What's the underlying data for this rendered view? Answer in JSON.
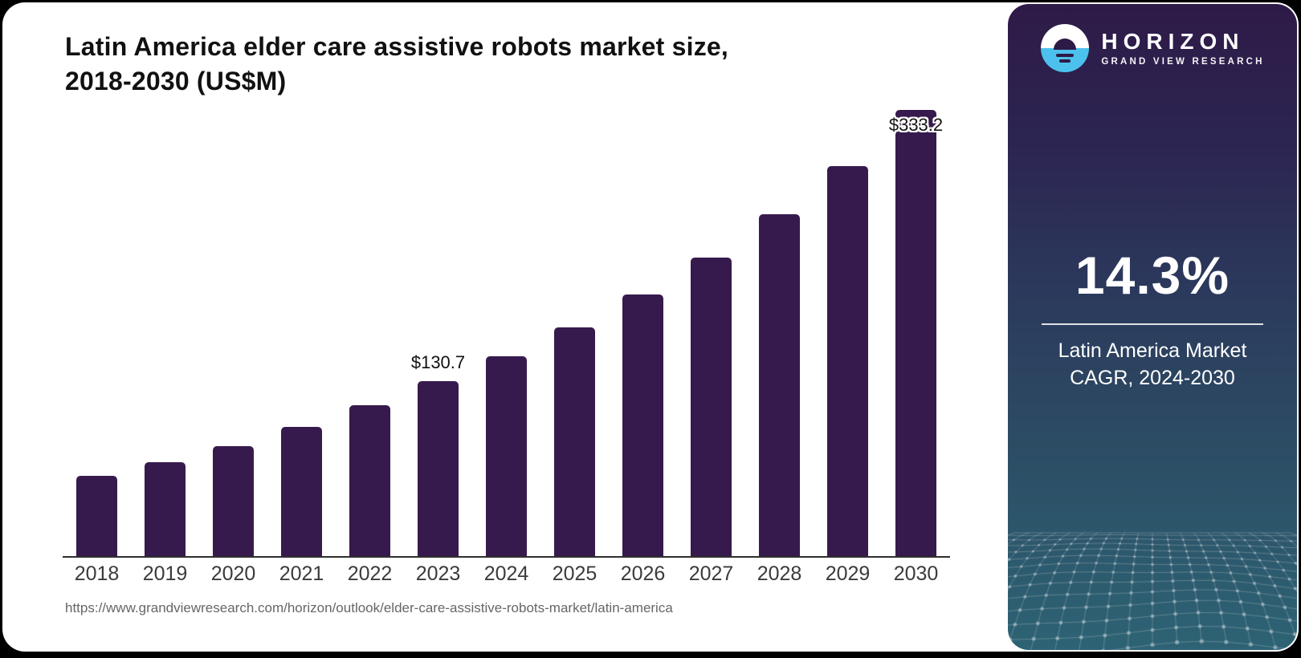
{
  "chart": {
    "title": "Latin America elder care assistive robots market size,\n2018-2030 (US$M)",
    "source_url": "https://www.grandviewresearch.com/horizon/outlook/elder-care-assistive-robots-market/latin-america",
    "bar_color": "#371a4d",
    "axis_color": "#2f2f2f"
  },
  "chart_data": {
    "type": "bar",
    "title": "Latin America elder care assistive robots market size, 2018-2030 (US$M)",
    "categories": [
      "2018",
      "2019",
      "2020",
      "2021",
      "2022",
      "2023",
      "2024",
      "2025",
      "2026",
      "2027",
      "2028",
      "2029",
      "2030"
    ],
    "values": [
      60.1,
      70.2,
      82.1,
      96.2,
      112.6,
      130.7,
      149.4,
      170.8,
      195.2,
      223.1,
      255.0,
      291.5,
      333.2
    ],
    "data_labels": [
      {
        "category": "2023",
        "text": "$130.7",
        "placement": "above"
      },
      {
        "category": "2030",
        "text": "$333.2",
        "placement": "on-bar"
      }
    ],
    "xlabel": "",
    "ylabel": "",
    "ylim": [
      0,
      350
    ],
    "grid": false,
    "legend": false
  },
  "sidebar": {
    "logo": {
      "brand": "HORIZON",
      "sub": "GRAND VIEW RESEARCH",
      "icon_blue": "#4cc1ed",
      "icon_dark": "#2e1a47"
    },
    "stat": {
      "value": "14.3%",
      "caption": "Latin America Market\nCAGR, 2024-2030"
    },
    "colors": {
      "gradient_top": "#2e1a47",
      "gradient_mid": "#2b3a5c",
      "gradient_bottom": "#2d6374"
    }
  }
}
